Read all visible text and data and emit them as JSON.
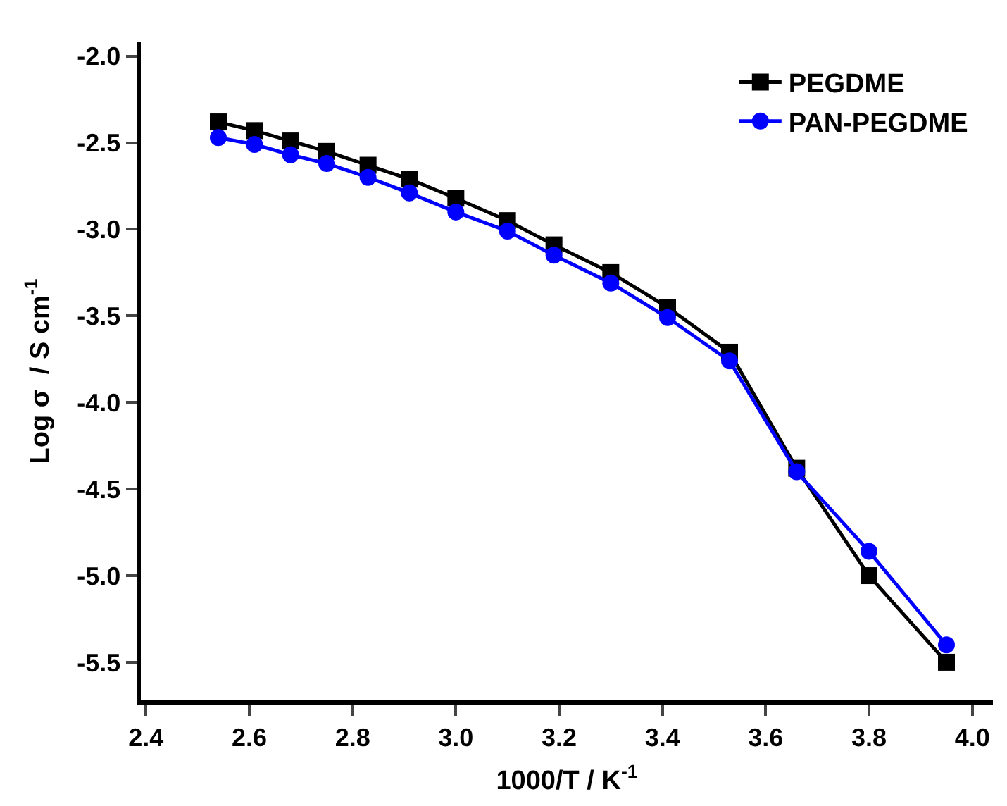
{
  "chart_data": {
    "type": "line",
    "xlabel": "1000/T / K$^{-1}$",
    "ylabel": "Log σ  / S cm$^{-1}$",
    "x": [
      2.54,
      2.61,
      2.68,
      2.75,
      2.83,
      2.91,
      3.0,
      3.1,
      3.19,
      3.3,
      3.41,
      3.53,
      3.66,
      3.8,
      3.95
    ],
    "series": [
      {
        "name": "PEGDME",
        "color": "#000000",
        "marker": "square",
        "values": [
          -2.38,
          -2.43,
          -2.49,
          -2.55,
          -2.63,
          -2.71,
          -2.82,
          -2.95,
          -3.09,
          -3.25,
          -3.45,
          -3.71,
          -4.38,
          -5.0,
          -5.5
        ]
      },
      {
        "name": "PAN-PEGDME",
        "color": "#0000ff",
        "marker": "circle",
        "values": [
          -2.47,
          -2.51,
          -2.57,
          -2.62,
          -2.7,
          -2.79,
          -2.9,
          -3.01,
          -3.15,
          -3.31,
          -3.51,
          -3.76,
          -4.4,
          -4.86,
          -5.4
        ]
      }
    ],
    "xlim": [
      2.39,
      4.04
    ],
    "xticks": [
      2.4,
      2.6,
      2.8,
      {
        "value": 3,
        "label": "3.0"
      },
      3.2,
      3.4,
      3.6,
      3.8,
      {
        "value": 4,
        "label": "4.0"
      }
    ],
    "ylim": [
      -5.72,
      -1.92
    ],
    "yticks": [
      -5.5,
      {
        "value": -5,
        "label": "-5.0"
      },
      -4.5,
      {
        "value": -4,
        "label": "-4.0"
      },
      -3.5,
      {
        "value": -3,
        "label": "-3.0"
      },
      -2.5,
      {
        "value": -2,
        "label": "-2.0"
      }
    ],
    "grid": false,
    "legend": "top right",
    "line_style": "solid"
  }
}
